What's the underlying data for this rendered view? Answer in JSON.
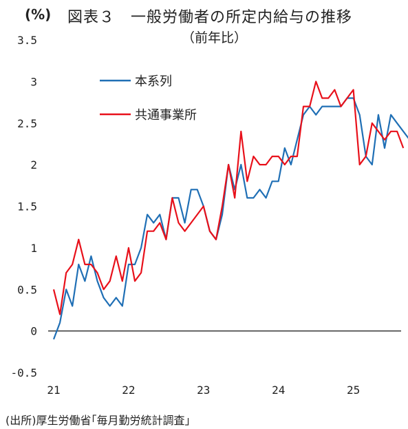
{
  "header": {
    "unit": "(%)",
    "title": "図表３　一般労働者の所定内給与の推移",
    "subtitle": "（前年比）"
  },
  "source": "(出所)厚生労働省｢毎月勤労統計調査｣",
  "chart_data": {
    "type": "line",
    "title": "図表３　一般労働者の所定内給与の推移",
    "subtitle": "（前年比）",
    "unit": "(%)",
    "ylim": [
      -0.5,
      3.5
    ],
    "yticks": [
      "3.5",
      "3",
      "2.5",
      "2",
      "1.5",
      "1",
      "0.5",
      "0",
      "-0.5"
    ],
    "yvalues": [
      3.5,
      3,
      2.5,
      2,
      1.5,
      1,
      0.5,
      0,
      -0.5
    ],
    "xticks": [
      "21",
      "22",
      "23",
      "24",
      "25"
    ],
    "grid": false,
    "zero_line": true,
    "legend_position": "top-left",
    "series": [
      {
        "name": "本系列",
        "color": "#1f6fb5",
        "values": [
          -0.1,
          0.1,
          0.5,
          0.3,
          0.8,
          0.6,
          0.9,
          0.6,
          0.4,
          0.3,
          0.4,
          0.3,
          0.8,
          0.8,
          1.0,
          1.4,
          1.3,
          1.4,
          1.1,
          1.6,
          1.6,
          1.3,
          1.7,
          1.7,
          1.5,
          1.2,
          1.1,
          1.4,
          2.0,
          1.7,
          2.0,
          1.6,
          1.6,
          1.7,
          1.6,
          1.8,
          1.8,
          2.2,
          2.0,
          2.3,
          2.6,
          2.7,
          2.6,
          2.7,
          2.7,
          2.7,
          2.7,
          2.8,
          2.8,
          2.6,
          2.1,
          2.0,
          2.6,
          2.2,
          2.6,
          2.5,
          2.4,
          2.3
        ]
      },
      {
        "name": "共通事業所",
        "color": "#e8101a",
        "values": [
          0.5,
          0.2,
          0.7,
          0.8,
          1.1,
          0.8,
          0.8,
          0.7,
          0.5,
          0.6,
          0.9,
          0.6,
          1.0,
          0.6,
          0.7,
          1.2,
          1.2,
          1.3,
          1.1,
          1.6,
          1.3,
          1.2,
          1.3,
          1.4,
          1.5,
          1.2,
          1.1,
          1.5,
          2.0,
          1.6,
          2.4,
          1.8,
          2.1,
          2.0,
          2.0,
          2.1,
          2.1,
          2.0,
          2.1,
          2.1,
          2.7,
          2.7,
          3.0,
          2.8,
          2.8,
          2.9,
          2.7,
          2.8,
          2.9,
          2.0,
          2.1,
          2.5,
          2.4,
          2.3,
          2.4,
          2.4,
          2.2
        ]
      }
    ]
  }
}
